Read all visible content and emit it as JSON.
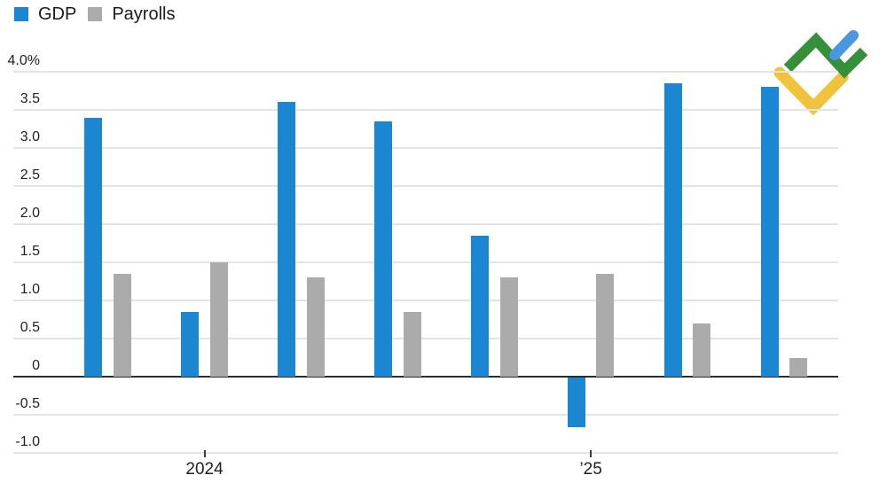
{
  "legend": {
    "items": [
      {
        "label": "GDP",
        "color": "#1b87d3"
      },
      {
        "label": "Payrolls",
        "color": "#ababab"
      }
    ]
  },
  "chart_data": {
    "type": "bar",
    "title": "",
    "groups": 8,
    "series": [
      {
        "name": "GDP",
        "color": "#1b87d3",
        "values": [
          3.4,
          0.85,
          3.6,
          3.35,
          1.85,
          -0.65,
          3.85,
          3.8
        ]
      },
      {
        "name": "Payrolls",
        "color": "#ababab",
        "values": [
          1.35,
          1.5,
          1.3,
          0.85,
          1.3,
          1.35,
          0.7,
          0.25
        ]
      }
    ],
    "y_axis": {
      "min": -1.0,
      "max": 4.0,
      "step": 0.5,
      "unit": "%",
      "tick_labels": [
        "4.0%",
        "3.5",
        "3.0",
        "2.5",
        "2.0",
        "1.5",
        "1.0",
        "0.5",
        "0",
        "-0.5",
        "-1.0"
      ]
    },
    "x_axis": {
      "tick_labels": [
        {
          "group_index": 1,
          "label": "2024"
        },
        {
          "group_index": 5,
          "label": "’25"
        }
      ]
    },
    "grid": true,
    "zero_line": true,
    "legend_position": "top-left",
    "colors": {
      "gridline": "#e4e4e4",
      "zero_line": "#2d2d2d",
      "axis_text": "#1f1f1f"
    }
  },
  "logo": {
    "name": "litefinance-logo",
    "colors": {
      "green": "#35903a",
      "yellow": "#f1c23c",
      "blue": "#4b96e0"
    }
  }
}
